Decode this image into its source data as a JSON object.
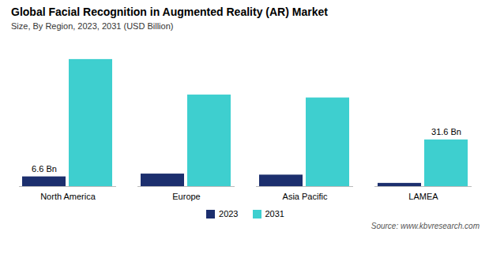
{
  "chart_data": {
    "type": "bar",
    "title": "Global Facial Recognition in Augmented Reality (AR) Market",
    "subtitle": "Size, By Region, 2023, 2031 (USD Billion)",
    "source": "Source: www.kbvresearch.com",
    "categories": [
      "North America",
      "Europe",
      "Asia Pacific",
      "LAMEA"
    ],
    "series": [
      {
        "name": "2023",
        "color": "#1c2f6e",
        "values": [
          6.6,
          8.5,
          7.8,
          2.2
        ]
      },
      {
        "name": "2031",
        "color": "#3ecfcf",
        "values": [
          86.0,
          62.0,
          60.0,
          31.6
        ]
      }
    ],
    "annotations": [
      {
        "text": "6.6 Bn",
        "category": "North America",
        "series": "2023"
      },
      {
        "text": "31.6 Bn",
        "category": "LAMEA",
        "series": "2031"
      }
    ],
    "ylim": [
      0,
      92.88
    ],
    "tick_labels": "x",
    "grid": false,
    "legend": "bottom"
  }
}
